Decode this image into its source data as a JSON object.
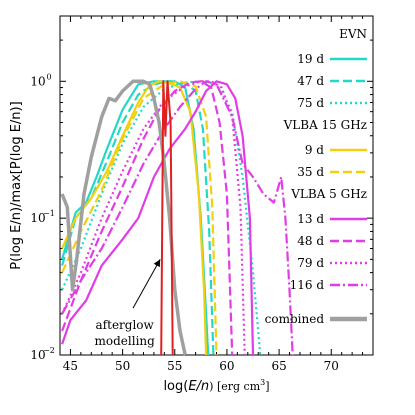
{
  "chart_data": {
    "type": "line",
    "xlabel_pre": "log(",
    "xlabel_italic": "E/n",
    "xlabel_post": ") [erg cm",
    "xlabel_sup": "3",
    "xlabel_close": "]",
    "ylabel": "P(log E/n)/max[P(log E/n)]",
    "xlim": [
      44,
      74
    ],
    "ylim": [
      0.01,
      3
    ],
    "yscale": "log",
    "x_ticks": [
      45,
      50,
      55,
      60,
      65,
      70
    ],
    "x_tick_labels": [
      "45",
      "50",
      "55",
      "60",
      "65",
      "70"
    ],
    "y_ticks": [
      0.01,
      0.1,
      1
    ],
    "y_tick_labels": [
      "10",
      "10",
      "10"
    ],
    "y_tick_exps": [
      "−2",
      "−1",
      "0"
    ],
    "legend_groups": [
      "EVN",
      "VLBA 15 GHz",
      "VLBA 5 GHz"
    ],
    "annotation": {
      "line1": "afterglow",
      "line2": "modelling"
    },
    "colors": {
      "evn": "#22d8c8",
      "vlba15": "#f0d010",
      "vlba5": "#e23ce6",
      "combined": "#a0a0a0",
      "afterglow": "#e02020"
    },
    "series": [
      {
        "name": "19 d",
        "group": "EVN",
        "color": "#22d8c8",
        "dash": "solid",
        "points": [
          [
            44.2,
            0.05
          ],
          [
            45.5,
            0.11
          ],
          [
            46.5,
            0.13
          ],
          [
            47.5,
            0.2
          ],
          [
            48.5,
            0.32
          ],
          [
            50,
            0.62
          ],
          [
            51.5,
            0.95
          ],
          [
            53,
            1.0
          ],
          [
            55,
            1.0
          ],
          [
            56,
            0.9
          ],
          [
            56.8,
            0.45
          ],
          [
            57.5,
            0.1
          ],
          [
            58,
            0.02
          ],
          [
            58.2,
            0.01
          ]
        ]
      },
      {
        "name": "47 d",
        "group": "EVN",
        "color": "#22d8c8",
        "dash": "dash",
        "points": [
          [
            44.2,
            0.045
          ],
          [
            45.5,
            0.1
          ],
          [
            47,
            0.14
          ],
          [
            48.5,
            0.26
          ],
          [
            50,
            0.5
          ],
          [
            51.5,
            0.8
          ],
          [
            53,
            0.95
          ],
          [
            54.5,
            1.0
          ],
          [
            56,
            0.97
          ],
          [
            57,
            0.85
          ],
          [
            57.7,
            0.45
          ],
          [
            58.3,
            0.08
          ],
          [
            58.7,
            0.01
          ]
        ]
      },
      {
        "name": "75 d",
        "group": "EVN",
        "color": "#22d8c8",
        "dash": "dot",
        "points": [
          [
            44.2,
            0.03
          ],
          [
            46,
            0.06
          ],
          [
            48,
            0.15
          ],
          [
            50,
            0.35
          ],
          [
            52,
            0.65
          ],
          [
            54,
            0.88
          ],
          [
            56,
            0.98
          ],
          [
            57.5,
            1.0
          ],
          [
            59,
            0.95
          ],
          [
            60.5,
            0.6
          ],
          [
            61.5,
            0.2
          ],
          [
            62.5,
            0.04
          ],
          [
            63.2,
            0.01
          ]
        ]
      },
      {
        "name": "9 d",
        "group": "VLBA 15 GHz",
        "color": "#f0d010",
        "dash": "solid",
        "points": [
          [
            44.2,
            0.06
          ],
          [
            45.5,
            0.1
          ],
          [
            47,
            0.14
          ],
          [
            48.5,
            0.22
          ],
          [
            50,
            0.4
          ],
          [
            51.5,
            0.7
          ],
          [
            52.5,
            0.92
          ],
          [
            53.5,
            1.0
          ],
          [
            54.5,
            0.97
          ],
          [
            55.5,
            0.9
          ],
          [
            56.5,
            0.6
          ],
          [
            57.3,
            0.15
          ],
          [
            57.8,
            0.03
          ],
          [
            58,
            0.01
          ]
        ]
      },
      {
        "name": "35 d",
        "group": "VLBA 15 GHz",
        "color": "#f0d010",
        "dash": "dash",
        "points": [
          [
            44.2,
            0.04
          ],
          [
            46,
            0.08
          ],
          [
            48,
            0.16
          ],
          [
            50,
            0.38
          ],
          [
            52,
            0.75
          ],
          [
            54,
            0.95
          ],
          [
            55.5,
            1.0
          ],
          [
            57,
            0.92
          ],
          [
            58,
            0.55
          ],
          [
            58.6,
            0.12
          ],
          [
            59,
            0.01
          ]
        ]
      },
      {
        "name": "13 d",
        "group": "VLBA 5 GHz",
        "color": "#e23ce6",
        "dash": "solid",
        "points": [
          [
            44.2,
            0.012
          ],
          [
            45,
            0.018
          ],
          [
            46.5,
            0.025
          ],
          [
            48,
            0.045
          ],
          [
            50,
            0.07
          ],
          [
            51.5,
            0.1
          ],
          [
            53,
            0.2
          ],
          [
            54.5,
            0.32
          ],
          [
            56,
            0.45
          ],
          [
            57,
            0.6
          ],
          [
            58,
            0.85
          ],
          [
            59,
            1.0
          ],
          [
            60,
            0.95
          ],
          [
            60.8,
            0.75
          ],
          [
            61.5,
            0.4
          ],
          [
            62.2,
            0.1
          ],
          [
            62.5,
            0.01
          ]
        ]
      },
      {
        "name": "48 d",
        "group": "VLBA 5 GHz",
        "color": "#e23ce6",
        "dash": "dash",
        "points": [
          [
            44.2,
            0.015
          ],
          [
            46,
            0.035
          ],
          [
            48,
            0.08
          ],
          [
            50,
            0.17
          ],
          [
            52,
            0.38
          ],
          [
            53.5,
            0.62
          ],
          [
            55,
            0.85
          ],
          [
            56.5,
            0.98
          ],
          [
            57.5,
            1.0
          ],
          [
            58.5,
            0.9
          ],
          [
            59.3,
            0.5
          ],
          [
            60,
            0.15
          ],
          [
            60.5,
            0.01
          ]
        ]
      },
      {
        "name": "79 d",
        "group": "VLBA 5 GHz",
        "color": "#e23ce6",
        "dash": "dot",
        "points": [
          [
            44.2,
            0.02
          ],
          [
            46,
            0.04
          ],
          [
            48,
            0.1
          ],
          [
            50,
            0.22
          ],
          [
            52,
            0.45
          ],
          [
            54,
            0.72
          ],
          [
            56,
            0.92
          ],
          [
            57.5,
            1.0
          ],
          [
            58.5,
            1.0
          ],
          [
            59.5,
            0.9
          ],
          [
            60.5,
            0.55
          ],
          [
            61.3,
            0.12
          ],
          [
            61.7,
            0.01
          ]
        ]
      },
      {
        "name": "116 d",
        "group": "VLBA 5 GHz",
        "color": "#e23ce6",
        "dash": "dashdot",
        "points": [
          [
            44.2,
            0.02
          ],
          [
            46,
            0.035
          ],
          [
            48,
            0.06
          ],
          [
            50,
            0.12
          ],
          [
            52,
            0.25
          ],
          [
            54,
            0.45
          ],
          [
            55.5,
            0.65
          ],
          [
            57,
            0.88
          ],
          [
            58,
            1.0
          ],
          [
            59,
            0.95
          ],
          [
            60.5,
            0.55
          ],
          [
            61.5,
            0.25
          ],
          [
            62.5,
            0.2
          ],
          [
            63.5,
            0.15
          ],
          [
            64.5,
            0.13
          ],
          [
            65.2,
            0.2
          ],
          [
            65.6,
            0.1
          ],
          [
            66,
            0.03
          ],
          [
            66.3,
            0.01
          ]
        ]
      },
      {
        "name": "combined",
        "group": "",
        "color": "#a0a0a0",
        "dash": "solid",
        "width": 3.5,
        "points": [
          [
            44.2,
            0.15
          ],
          [
            44.7,
            0.12
          ],
          [
            45.2,
            0.03
          ],
          [
            45.6,
            0.05
          ],
          [
            46.3,
            0.15
          ],
          [
            47,
            0.28
          ],
          [
            48,
            0.55
          ],
          [
            48.7,
            0.75
          ],
          [
            49.3,
            0.72
          ],
          [
            50,
            0.85
          ],
          [
            51,
            1.0
          ],
          [
            52,
            1.0
          ],
          [
            52.6,
            0.95
          ],
          [
            53,
            0.75
          ],
          [
            53.5,
            0.5
          ],
          [
            54,
            0.25
          ],
          [
            54.5,
            0.1
          ],
          [
            55,
            0.03
          ],
          [
            55.5,
            0.015
          ],
          [
            56,
            0.01
          ]
        ]
      },
      {
        "name": "",
        "group": "",
        "color": "#e02020",
        "dash": "solid",
        "width": 2.0,
        "points": [
          [
            53.7,
            0.01
          ],
          [
            53.9,
            1.0
          ],
          [
            54.1,
            0.4
          ],
          [
            54.3,
            1.0
          ],
          [
            54.6,
            0.5
          ],
          [
            54.8,
            0.01
          ]
        ]
      }
    ]
  }
}
